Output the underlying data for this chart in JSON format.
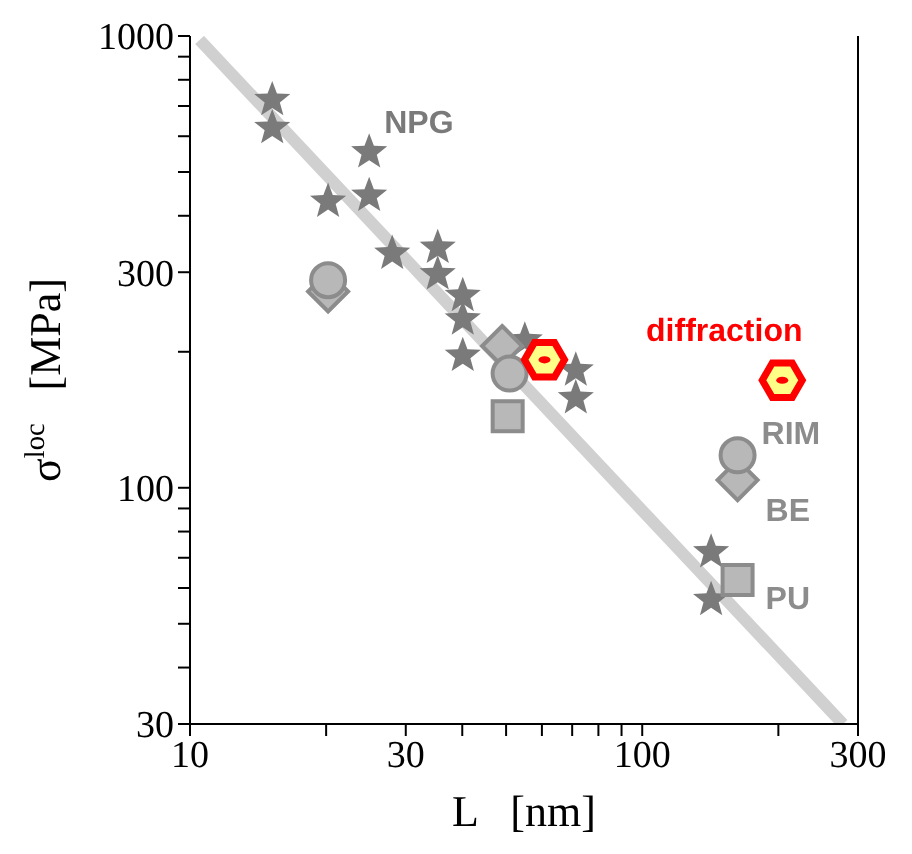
{
  "chart_data": {
    "type": "scatter",
    "xlabel": "L   [nm]",
    "ylabel": "σ$^{loc}$   [MPa]",
    "log": "xy",
    "xlim": [
      10,
      300
    ],
    "ylim": [
      30,
      1000
    ],
    "xticks": [
      10,
      {
        "value": 20,
        "label": null
      },
      30,
      {
        "value": 40,
        "label": null
      },
      {
        "value": 50,
        "label": null
      },
      {
        "value": 60,
        "label": null
      },
      {
        "value": 70,
        "label": null
      },
      {
        "value": 80,
        "label": null
      },
      {
        "value": 90,
        "label": null
      },
      100,
      {
        "value": 200,
        "label": null
      },
      300
    ],
    "yticks": [
      30,
      {
        "value": 40,
        "label": null
      },
      {
        "value": 50,
        "label": null
      },
      {
        "value": 60,
        "label": null
      },
      {
        "value": 70,
        "label": null
      },
      {
        "value": 80,
        "label": null
      },
      {
        "value": 90,
        "label": null
      },
      100,
      {
        "value": 200,
        "label": null
      },
      300,
      {
        "value": 400,
        "label": null
      },
      {
        "value": 500,
        "label": null
      },
      {
        "value": 600,
        "label": null
      },
      {
        "value": 700,
        "label": null
      },
      {
        "value": 800,
        "label": null
      },
      {
        "value": 900,
        "label": null
      },
      1000
    ],
    "series": [
      {
        "type": "line",
        "color": "#d0d0d0",
        "marker": "none",
        "x": [
          10.5,
          278
        ],
        "values": [
          980,
          30
        ]
      },
      {
        "name": "NPG",
        "color": "#7a7a7a",
        "marker": "star",
        "x": [
          15.2,
          15.2,
          20.2,
          24.9,
          24.9,
          28,
          35.3,
          35.3,
          40.1,
          40.1,
          40.1,
          55,
          71.3,
          71.3,
          142,
          142
        ],
        "values": [
          722,
          626,
          430,
          553,
          443,
          330,
          340,
          297,
          266,
          236,
          196,
          212,
          182,
          158,
          72,
          56.5
        ]
      },
      {
        "name": "BE",
        "color": "#8c8c8c",
        "marker": "diamond",
        "x": [
          20.2,
          49,
          162.5
        ],
        "values": [
          272,
          206,
          104
        ]
      },
      {
        "name": "RIM",
        "color": "#8c8c8c",
        "marker": "circle",
        "x": [
          20.2,
          50.9,
          162.5
        ],
        "values": [
          288,
          179,
          118
        ]
      },
      {
        "name": "PU",
        "color": "#8c8c8c",
        "marker": "square",
        "x": [
          50.4,
          162.5
        ],
        "values": [
          144,
          62.5
        ]
      },
      {
        "name": "diffraction",
        "color": "#ff0000",
        "x": [
          60.8,
          204
        ],
        "values": [
          192,
          173
        ]
      }
    ]
  }
}
